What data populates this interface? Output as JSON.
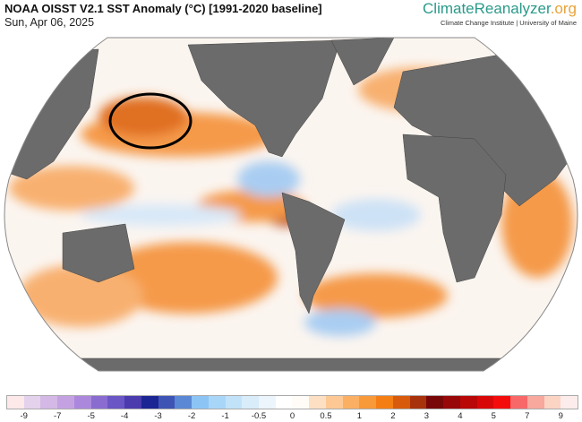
{
  "header": {
    "title": "NOAA OISST V2.1 SST Anomaly (°C) [1991-2020 baseline]",
    "date": "Sun, Apr 06, 2025"
  },
  "brand": {
    "name_main": "ClimateReanalyzer",
    "name_suffix": ".org",
    "subtitle": "Climate Change Institute | University of Maine"
  },
  "colorbar": {
    "colors": [
      "#fde8ea",
      "#e4d2ec",
      "#d4b8e6",
      "#c4a2e2",
      "#ac88dc",
      "#8a6cd0",
      "#6a56c4",
      "#4a3cae",
      "#1c2594",
      "#3e54b4",
      "#5a88d4",
      "#8cc4f6",
      "#a8d6f8",
      "#c2e2fa",
      "#d8ecfa",
      "#ecf4fc",
      "#ffffff",
      "#fffcf8",
      "#fde0c4",
      "#fdc894",
      "#fbaf62",
      "#f8993a",
      "#f47e14",
      "#d85a0c",
      "#a8320c",
      "#780808",
      "#980808",
      "#b80808",
      "#d80808",
      "#f40c0c",
      "#f86868",
      "#f8a89c",
      "#fcd4c4",
      "#fcecec"
    ],
    "labels": [
      "-9",
      "-7",
      "-5",
      "-4",
      "-3",
      "-2",
      "-1",
      "-0.5",
      "0",
      "0.5",
      "1",
      "2",
      "3",
      "4",
      "5",
      "7",
      "9"
    ]
  },
  "colors": {
    "land": "#6b6b6b",
    "ocean": "#fbf5f0",
    "warm": "#f59a4a",
    "cool": "#a9cdf2",
    "annotation": "#000000"
  }
}
